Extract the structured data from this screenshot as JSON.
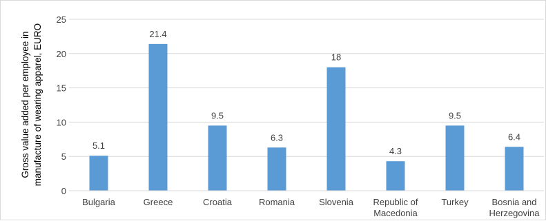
{
  "chart_data": {
    "type": "bar",
    "ylabel_lines": [
      "Gross value added per employee in",
      "manufacture of wearing apparel, EURO"
    ],
    "categories": [
      [
        "Bulgaria"
      ],
      [
        "Greece"
      ],
      [
        "Croatia"
      ],
      [
        "Romania"
      ],
      [
        "Slovenia"
      ],
      [
        "Republic of",
        "Macedonia"
      ],
      [
        "Turkey"
      ],
      [
        "Bosnia and",
        "Herzegovina"
      ]
    ],
    "values": [
      5.1,
      21.4,
      9.5,
      6.3,
      18,
      4.3,
      9.5,
      6.4
    ],
    "data_labels": [
      "5.1",
      "21.4",
      "9.5",
      "6.3",
      "18",
      "4.3",
      "9.5",
      "6.4"
    ],
    "yticks": [
      "0",
      "5",
      "10",
      "15",
      "20",
      "25"
    ],
    "ylim": [
      0,
      25
    ],
    "grid": true,
    "legend": "none",
    "bar_color": "#5b9bd5",
    "grid_color": "#d9d9d9"
  }
}
